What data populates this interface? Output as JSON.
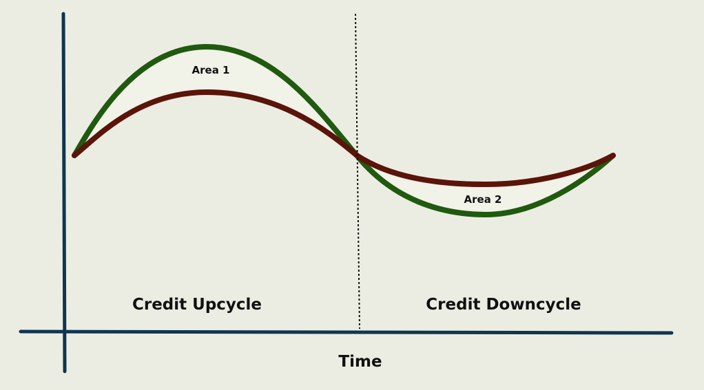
{
  "diagram": {
    "labels": {
      "area_1": "Area 1",
      "area_2": "Area 2",
      "phase_up": "Credit Upcycle",
      "phase_down": "Credit Downcycle",
      "x_axis": "Time"
    },
    "colors": {
      "background": "#ecede2",
      "axis": "#0f3550",
      "outer_curve": "#1f5a0f",
      "inner_curve": "#5a1409",
      "area_fill": "#f1f2e8",
      "divider": "#111111"
    }
  }
}
